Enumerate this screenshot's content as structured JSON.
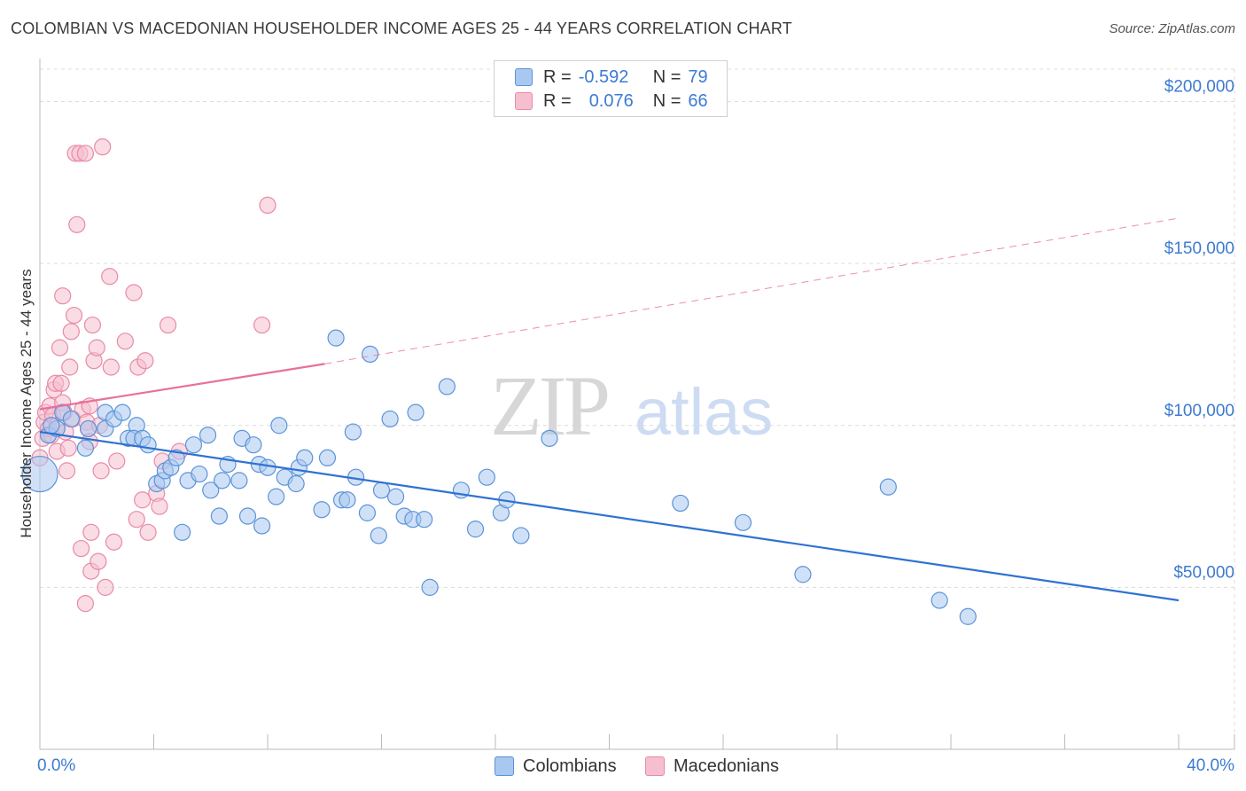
{
  "title": "COLOMBIAN VS MACEDONIAN HOUSEHOLDER INCOME AGES 25 - 44 YEARS CORRELATION CHART",
  "source": "Source: ZipAtlas.com",
  "watermark": {
    "zip": "ZIP",
    "atlas": "atlas"
  },
  "legend": {
    "colombians": {
      "r_label": "R =",
      "r_value": "-0.592",
      "n_label": "N =",
      "n_value": "79"
    },
    "macedonians": {
      "r_label": "R =",
      "r_value": "0.076",
      "n_label": "N =",
      "n_value": "66"
    }
  },
  "bottom_legend": {
    "colombians": "Colombians",
    "macedonians": "Macedonians"
  },
  "colors": {
    "blue_fill": "#a9c8f0",
    "blue_stroke": "#5b93d8",
    "blue_line": "#2f72d1",
    "pink_fill": "#f6bfd0",
    "pink_stroke": "#e88aa8",
    "pink_line": "#e8709a",
    "grid": "#dcdcdc",
    "tick_text": "#3d7bd0"
  },
  "chart_data": {
    "type": "scatter",
    "title": "COLOMBIAN VS MACEDONIAN HOUSEHOLDER INCOME AGES 25 - 44 YEARS CORRELATION CHART",
    "xlabel": "",
    "ylabel": "Householder Income Ages 25 - 44 years",
    "xlim": [
      0,
      40
    ],
    "ylim": [
      0,
      210000
    ],
    "x_tick_labels": [
      "0.0%",
      "40.0%"
    ],
    "y_ticks": [
      50000,
      100000,
      150000,
      200000
    ],
    "y_tick_labels": [
      "$50,000",
      "$100,000",
      "$150,000",
      "$200,000"
    ],
    "grid": true,
    "series": [
      {
        "name": "Colombians",
        "r": -0.592,
        "n": 79,
        "trend": {
          "x": [
            0,
            40
          ],
          "y": [
            98000,
            46000
          ],
          "style": "solid"
        },
        "points": [
          [
            0.0,
            85000
          ],
          [
            0.3,
            97000
          ],
          [
            0.6,
            99000
          ],
          [
            0.8,
            104000
          ],
          [
            1.1,
            102000
          ],
          [
            0.4,
            100000
          ],
          [
            1.7,
            99000
          ],
          [
            1.6,
            93000
          ],
          [
            2.3,
            99000
          ],
          [
            2.3,
            104000
          ],
          [
            2.6,
            102000
          ],
          [
            2.9,
            104000
          ],
          [
            3.1,
            96000
          ],
          [
            3.4,
            100000
          ],
          [
            3.3,
            96000
          ],
          [
            3.6,
            96000
          ],
          [
            3.8,
            94000
          ],
          [
            4.1,
            82000
          ],
          [
            4.3,
            83000
          ],
          [
            4.4,
            86000
          ],
          [
            4.6,
            87000
          ],
          [
            4.8,
            90000
          ],
          [
            5.0,
            67000
          ],
          [
            5.2,
            83000
          ],
          [
            5.4,
            94000
          ],
          [
            5.6,
            85000
          ],
          [
            5.9,
            97000
          ],
          [
            6.0,
            80000
          ],
          [
            6.4,
            83000
          ],
          [
            6.3,
            72000
          ],
          [
            6.6,
            88000
          ],
          [
            7.0,
            83000
          ],
          [
            7.1,
            96000
          ],
          [
            7.3,
            72000
          ],
          [
            7.5,
            94000
          ],
          [
            7.7,
            88000
          ],
          [
            7.8,
            69000
          ],
          [
            8.0,
            87000
          ],
          [
            8.3,
            78000
          ],
          [
            8.4,
            100000
          ],
          [
            8.6,
            84000
          ],
          [
            9.0,
            82000
          ],
          [
            9.1,
            87000
          ],
          [
            9.3,
            90000
          ],
          [
            9.9,
            74000
          ],
          [
            10.1,
            90000
          ],
          [
            10.4,
            127000
          ],
          [
            10.6,
            77000
          ],
          [
            10.8,
            77000
          ],
          [
            11.0,
            98000
          ],
          [
            11.1,
            84000
          ],
          [
            11.5,
            73000
          ],
          [
            11.6,
            122000
          ],
          [
            11.9,
            66000
          ],
          [
            12.0,
            80000
          ],
          [
            12.5,
            78000
          ],
          [
            12.3,
            102000
          ],
          [
            12.8,
            72000
          ],
          [
            13.1,
            71000
          ],
          [
            13.5,
            71000
          ],
          [
            13.2,
            104000
          ],
          [
            13.7,
            50000
          ],
          [
            14.3,
            112000
          ],
          [
            14.8,
            80000
          ],
          [
            15.3,
            68000
          ],
          [
            15.7,
            84000
          ],
          [
            16.2,
            73000
          ],
          [
            16.4,
            77000
          ],
          [
            16.9,
            66000
          ],
          [
            17.9,
            96000
          ],
          [
            22.5,
            76000
          ],
          [
            24.7,
            70000
          ],
          [
            26.8,
            54000
          ],
          [
            29.8,
            81000
          ],
          [
            31.6,
            46000
          ],
          [
            32.6,
            41000
          ]
        ]
      },
      {
        "name": "Macedonians",
        "r": 0.076,
        "n": 66,
        "trend": {
          "x": [
            0,
            10
          ],
          "y": [
            105000,
            119000
          ],
          "style": "solid",
          "extended_x": [
            10,
            40
          ],
          "extended_y": [
            119000,
            164000
          ],
          "extended_style": "dashed"
        },
        "points": [
          [
            0.0,
            90000
          ],
          [
            0.1,
            96000
          ],
          [
            0.15,
            101000
          ],
          [
            0.2,
            104000
          ],
          [
            0.3,
            99000
          ],
          [
            0.35,
            106000
          ],
          [
            0.4,
            97000
          ],
          [
            0.45,
            103000
          ],
          [
            0.5,
            111000
          ],
          [
            0.55,
            113000
          ],
          [
            0.6,
            100000
          ],
          [
            0.6,
            92000
          ],
          [
            0.7,
            124000
          ],
          [
            0.75,
            113000
          ],
          [
            0.8,
            107000
          ],
          [
            0.8,
            140000
          ],
          [
            0.85,
            104000
          ],
          [
            0.9,
            98000
          ],
          [
            0.95,
            86000
          ],
          [
            1.0,
            93000
          ],
          [
            1.05,
            118000
          ],
          [
            1.1,
            129000
          ],
          [
            1.15,
            102000
          ],
          [
            1.2,
            134000
          ],
          [
            1.25,
            184000
          ],
          [
            1.3,
            162000
          ],
          [
            1.4,
            184000
          ],
          [
            1.45,
            62000
          ],
          [
            1.5,
            105000
          ],
          [
            1.6,
            184000
          ],
          [
            1.65,
            101000
          ],
          [
            1.7,
            99000
          ],
          [
            1.75,
            95000
          ],
          [
            1.75,
            106000
          ],
          [
            1.8,
            67000
          ],
          [
            1.8,
            55000
          ],
          [
            1.85,
            131000
          ],
          [
            1.9,
            120000
          ],
          [
            2.0,
            124000
          ],
          [
            2.05,
            58000
          ],
          [
            2.1,
            100000
          ],
          [
            2.15,
            86000
          ],
          [
            2.2,
            186000
          ],
          [
            2.3,
            50000
          ],
          [
            2.45,
            146000
          ],
          [
            2.5,
            118000
          ],
          [
            2.6,
            64000
          ],
          [
            2.7,
            89000
          ],
          [
            3.0,
            126000
          ],
          [
            3.3,
            141000
          ],
          [
            3.4,
            71000
          ],
          [
            3.45,
            118000
          ],
          [
            3.6,
            77000
          ],
          [
            3.7,
            120000
          ],
          [
            3.8,
            67000
          ],
          [
            4.1,
            79000
          ],
          [
            4.2,
            75000
          ],
          [
            4.3,
            89000
          ],
          [
            4.5,
            131000
          ],
          [
            4.9,
            92000
          ],
          [
            1.6,
            45000
          ],
          [
            7.8,
            131000
          ],
          [
            8.0,
            168000
          ]
        ]
      }
    ]
  }
}
